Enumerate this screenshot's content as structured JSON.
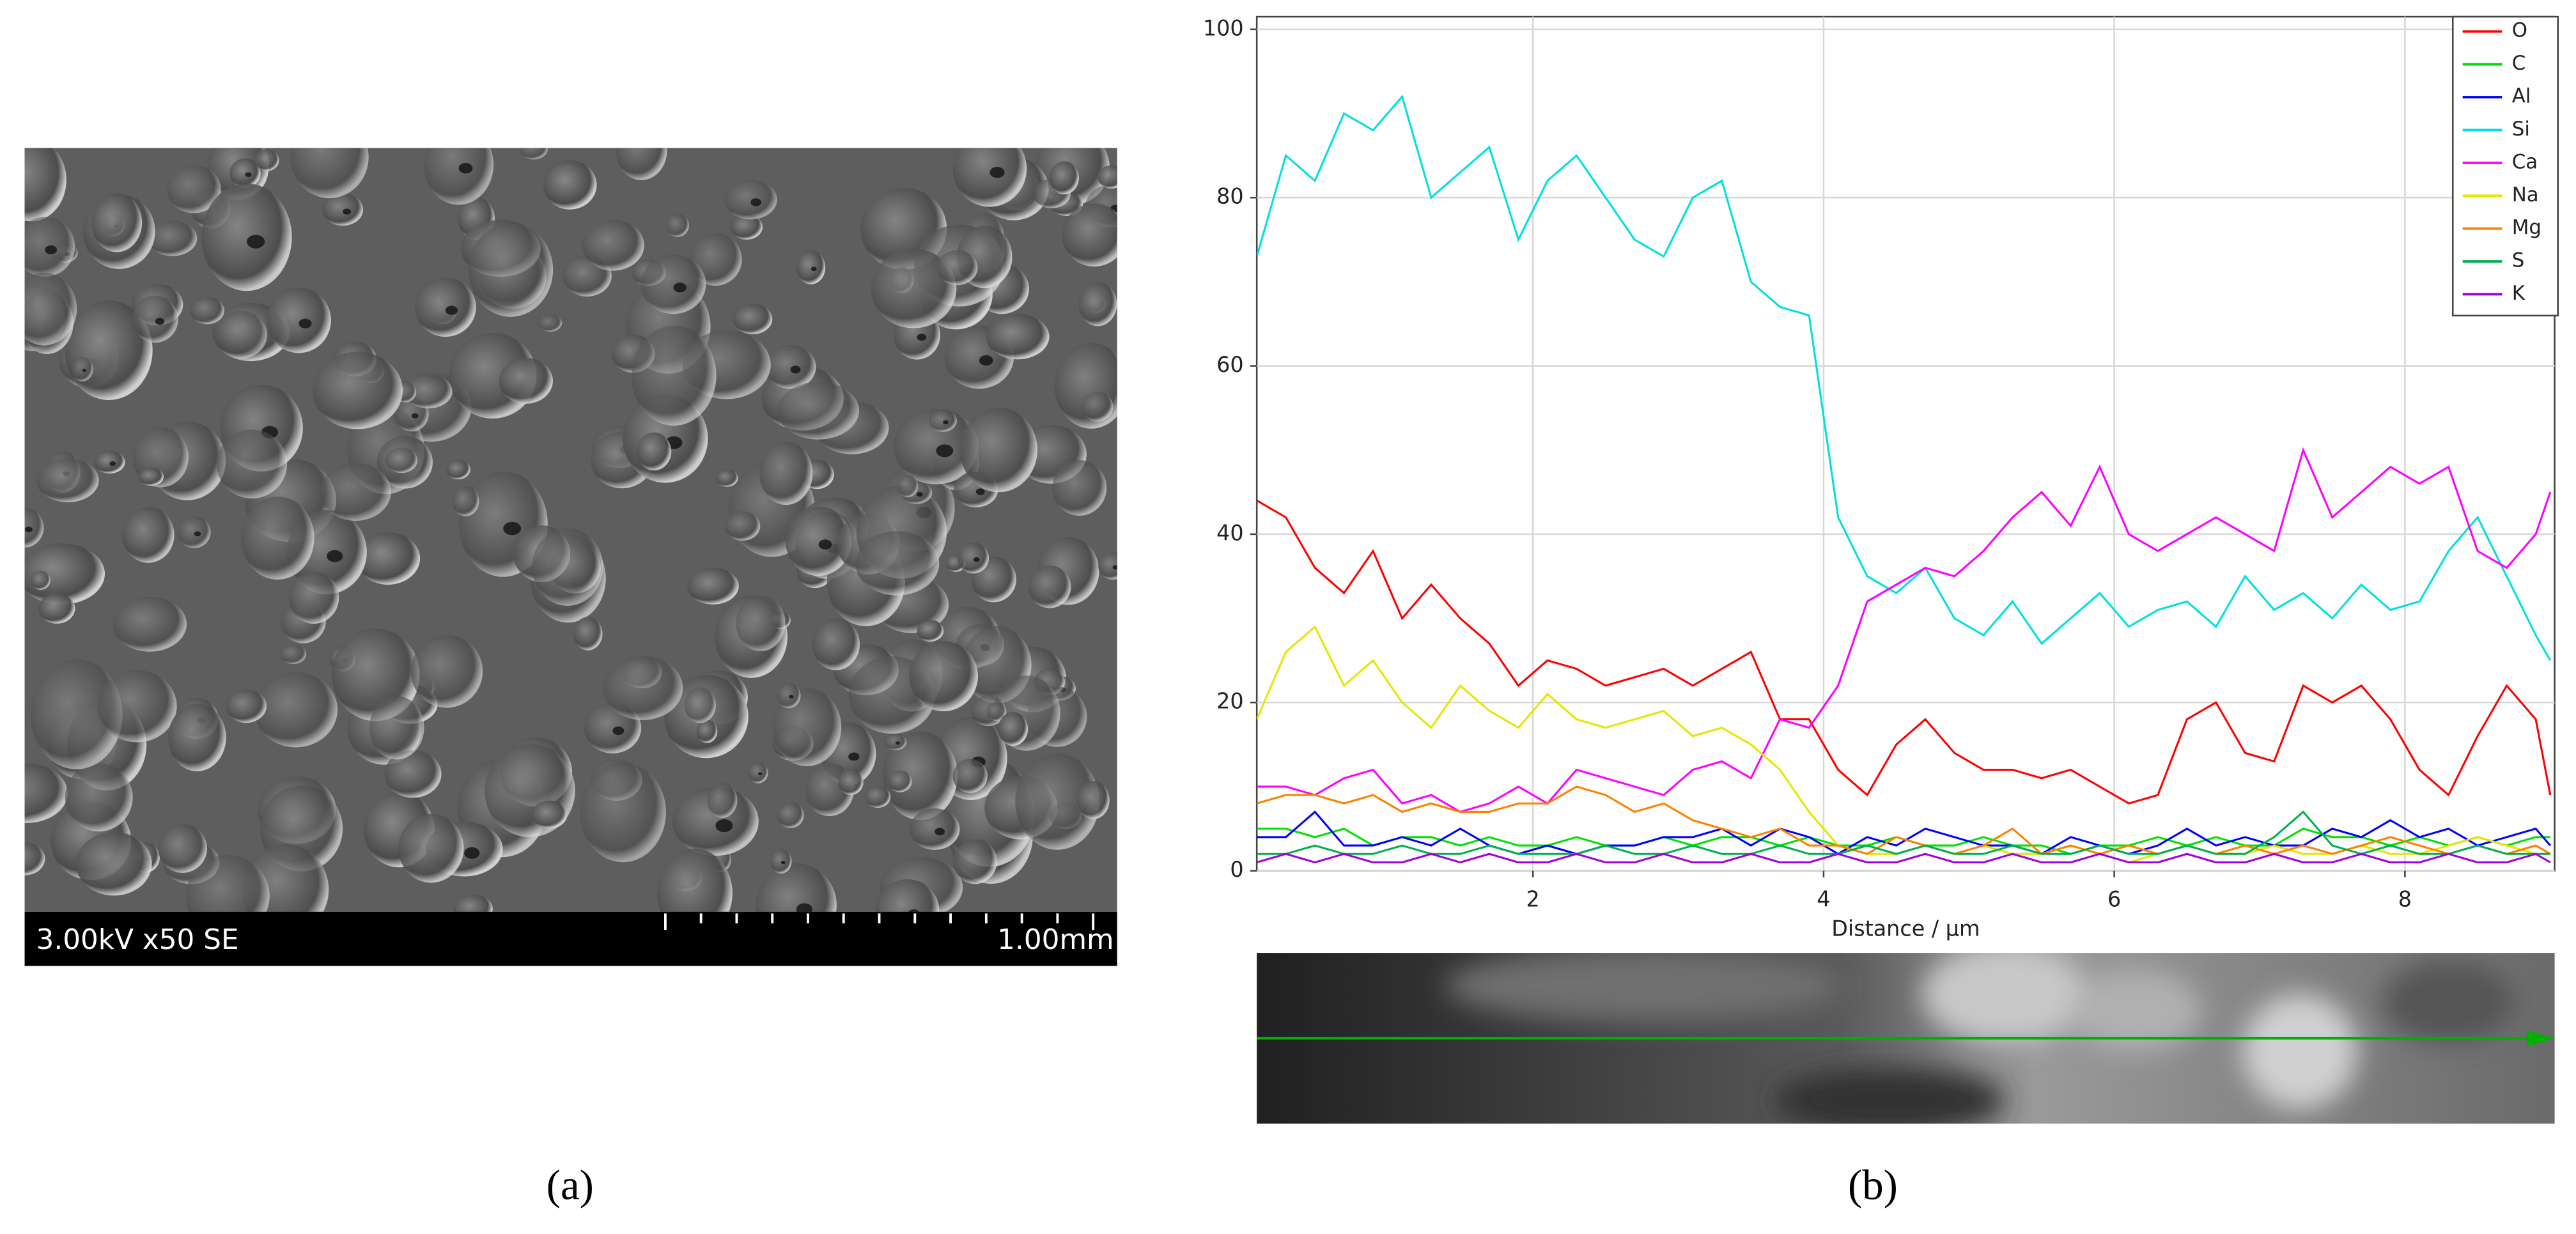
{
  "chart_data": {
    "type": "line",
    "x_label": "Distance / µm",
    "x": [
      0.1,
      0.3,
      0.5,
      0.7,
      0.9,
      1.1,
      1.3,
      1.5,
      1.7,
      1.9,
      2.1,
      2.3,
      2.5,
      2.7,
      2.9,
      3.1,
      3.3,
      3.5,
      3.7,
      3.9,
      4.1,
      4.3,
      4.5,
      4.7,
      4.9,
      5.1,
      5.3,
      5.5,
      5.7,
      5.9,
      6.1,
      6.3,
      6.5,
      6.7,
      6.9,
      7.1,
      7.3,
      7.5,
      7.7,
      7.9,
      8.1,
      8.3,
      8.5,
      8.7,
      8.9,
      9.0
    ],
    "xlim": [
      0.1,
      9.03
    ],
    "xticks": [
      2,
      4,
      6,
      8
    ],
    "ylim": [
      0,
      101.5
    ],
    "yticks": [
      0,
      20,
      40,
      60,
      80,
      100
    ],
    "grid": true,
    "legend": "upper right",
    "series": [
      {
        "name": "O",
        "color": "#ff0000",
        "values": [
          44,
          42,
          36,
          33,
          38,
          30,
          34,
          30,
          27,
          22,
          25,
          24,
          22,
          23,
          24,
          22,
          24,
          26,
          18,
          18,
          12,
          9,
          15,
          18,
          14,
          12,
          12,
          11,
          12,
          10,
          8,
          9,
          18,
          20,
          14,
          13,
          22,
          20,
          22,
          18,
          12,
          9,
          16,
          22,
          18,
          9
        ]
      },
      {
        "name": "C",
        "color": "#00e000",
        "values": [
          5,
          5,
          4,
          5,
          3,
          4,
          4,
          3,
          4,
          3,
          3,
          4,
          3,
          3,
          4,
          3,
          4,
          4,
          3,
          4,
          3,
          3,
          4,
          3,
          3,
          4,
          3,
          3,
          2,
          3,
          3,
          4,
          3,
          4,
          3,
          3,
          5,
          4,
          4,
          3,
          4,
          3,
          4,
          3,
          4,
          4
        ]
      },
      {
        "name": "Al",
        "color": "#0000ff",
        "values": [
          4,
          4,
          7,
          3,
          3,
          4,
          3,
          5,
          3,
          2,
          3,
          2,
          3,
          3,
          4,
          4,
          5,
          3,
          5,
          4,
          2,
          4,
          3,
          5,
          4,
          3,
          3,
          2,
          4,
          3,
          2,
          3,
          5,
          3,
          4,
          3,
          3,
          5,
          4,
          6,
          4,
          5,
          3,
          4,
          5,
          3
        ]
      },
      {
        "name": "Si",
        "color": "#00e0e0",
        "values": [
          73,
          85,
          82,
          90,
          88,
          92,
          80,
          83,
          86,
          75,
          82,
          85,
          80,
          75,
          73,
          80,
          82,
          70,
          67,
          66,
          42,
          35,
          33,
          36,
          30,
          28,
          32,
          27,
          30,
          33,
          29,
          31,
          32,
          29,
          35,
          31,
          33,
          30,
          34,
          31,
          32,
          38,
          42,
          35,
          28,
          25
        ]
      },
      {
        "name": "Ca",
        "color": "#ff00ff",
        "values": [
          10,
          10,
          9,
          11,
          12,
          8,
          9,
          7,
          8,
          10,
          8,
          12,
          11,
          10,
          9,
          12,
          13,
          11,
          18,
          17,
          22,
          32,
          34,
          36,
          35,
          38,
          42,
          45,
          41,
          48,
          40,
          38,
          40,
          42,
          40,
          38,
          50,
          42,
          45,
          48,
          46,
          48,
          38,
          36,
          40,
          45
        ]
      },
      {
        "name": "Na",
        "color": "#e6e600",
        "values": [
          18,
          26,
          29,
          22,
          25,
          20,
          17,
          22,
          19,
          17,
          21,
          18,
          17,
          18,
          19,
          16,
          17,
          15,
          12,
          7,
          3,
          2,
          2,
          3,
          2,
          3,
          2,
          2,
          3,
          2,
          1,
          2,
          3,
          2,
          2,
          3,
          2,
          2,
          3,
          2,
          2,
          3,
          4,
          3,
          2,
          2
        ]
      },
      {
        "name": "Mg",
        "color": "#ff8000",
        "values": [
          8,
          9,
          9,
          8,
          9,
          7,
          8,
          7,
          7,
          8,
          8,
          10,
          9,
          7,
          8,
          6,
          5,
          4,
          5,
          3,
          3,
          2,
          4,
          3,
          2,
          3,
          5,
          2,
          3,
          2,
          3,
          2,
          3,
          2,
          3,
          2,
          3,
          2,
          3,
          4,
          3,
          2,
          3,
          2,
          3,
          2
        ]
      },
      {
        "name": "S",
        "color": "#00b050",
        "values": [
          2,
          2,
          3,
          2,
          2,
          3,
          2,
          2,
          3,
          2,
          2,
          2,
          3,
          2,
          2,
          3,
          2,
          2,
          3,
          2,
          2,
          3,
          2,
          3,
          2,
          2,
          3,
          2,
          2,
          3,
          2,
          2,
          3,
          2,
          2,
          4,
          7,
          3,
          2,
          3,
          2,
          2,
          3,
          2,
          2,
          2
        ]
      },
      {
        "name": "K",
        "color": "#a000e0",
        "values": [
          1,
          2,
          1,
          2,
          1,
          1,
          2,
          1,
          2,
          1,
          1,
          2,
          1,
          1,
          2,
          1,
          1,
          2,
          1,
          1,
          2,
          1,
          1,
          2,
          1,
          1,
          2,
          1,
          1,
          2,
          1,
          1,
          2,
          1,
          1,
          2,
          1,
          1,
          2,
          1,
          1,
          2,
          1,
          1,
          2,
          1
        ]
      }
    ]
  },
  "sem_image": {
    "info": "3.00kV x50 SE",
    "scale": "1.00mm"
  },
  "captions": [
    "(a)",
    "(b)"
  ]
}
